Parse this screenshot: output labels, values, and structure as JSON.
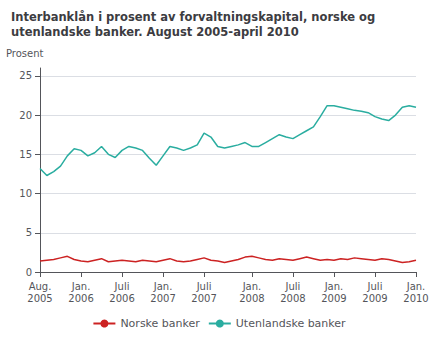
{
  "chart_data": {
    "type": "line",
    "title": "Interbanklån i prosent av forvaltningskapital, norske og\nutenlandske banker. August 2005-april 2010",
    "y_label": "Prosent",
    "categories": [
      "Aug.\n2005",
      null,
      null,
      null,
      null,
      null,
      "Jan.\n2006",
      null,
      null,
      null,
      null,
      null,
      "Juli\n2006",
      null,
      null,
      null,
      null,
      null,
      "Jan.\n2007",
      null,
      null,
      null,
      null,
      null,
      "Juli\n2007",
      null,
      null,
      null,
      null,
      null,
      null,
      "Jan.\n2008",
      null,
      null,
      null,
      null,
      null,
      "Juli\n2008",
      null,
      null,
      null,
      null,
      null,
      "Jan.\n2009",
      null,
      null,
      null,
      null,
      null,
      "Juli\n2009",
      null,
      null,
      null,
      null,
      null,
      "Jan.\n2010"
    ],
    "series": [
      {
        "name": "Norske banker",
        "color": "#cc2222",
        "values": [
          1.4,
          1.5,
          1.6,
          1.8,
          2.0,
          1.6,
          1.4,
          1.3,
          1.5,
          1.7,
          1.3,
          1.4,
          1.5,
          1.4,
          1.3,
          1.5,
          1.4,
          1.3,
          1.5,
          1.7,
          1.4,
          1.3,
          1.4,
          1.6,
          1.8,
          1.5,
          1.4,
          1.2,
          1.4,
          1.6,
          1.9,
          2.0,
          1.8,
          1.6,
          1.5,
          1.7,
          1.6,
          1.5,
          1.7,
          1.9,
          1.7,
          1.5,
          1.6,
          1.5,
          1.7,
          1.6,
          1.8,
          1.7,
          1.6,
          1.5,
          1.7,
          1.6,
          1.4,
          1.2,
          1.3,
          1.5
        ]
      },
      {
        "name": "Utenlandske banker",
        "color": "#2aada0",
        "values": [
          13.2,
          12.3,
          12.8,
          13.5,
          14.8,
          15.7,
          15.5,
          14.8,
          15.2,
          16.0,
          15.0,
          14.6,
          15.5,
          16.0,
          15.8,
          15.5,
          14.5,
          13.6,
          14.8,
          16.0,
          15.8,
          15.5,
          15.8,
          16.2,
          17.7,
          17.2,
          16.0,
          15.8,
          16.0,
          16.2,
          16.5,
          16.0,
          16.0,
          16.5,
          17.0,
          17.5,
          17.2,
          17.0,
          17.5,
          18.0,
          18.5,
          19.8,
          21.2,
          21.2,
          21.0,
          20.8,
          20.6,
          20.5,
          20.3,
          19.8,
          19.5,
          19.3,
          20.0,
          21.0,
          21.2,
          21.0
        ]
      }
    ],
    "ylim": [
      0,
      26
    ],
    "yticks": [
      0,
      5,
      10,
      15,
      20,
      25
    ],
    "grid": true,
    "legend": "bottom"
  }
}
